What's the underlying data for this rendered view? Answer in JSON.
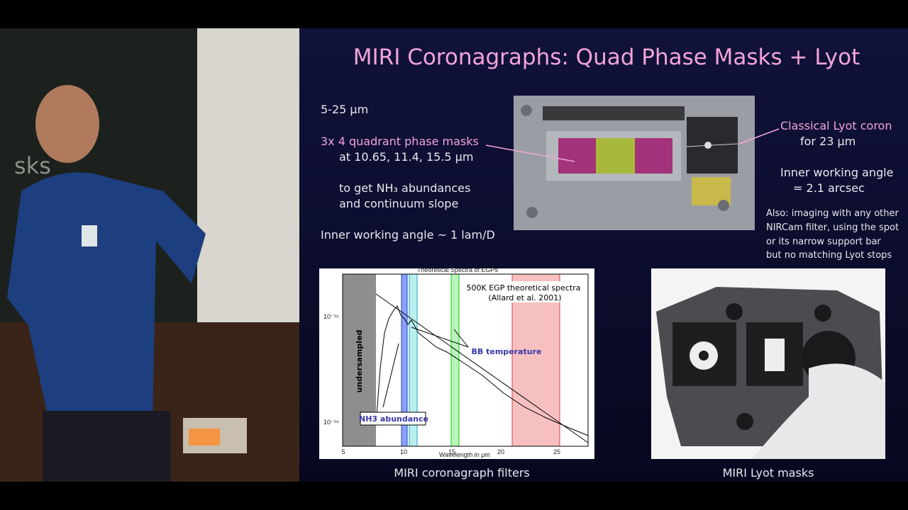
{
  "board": {
    "scribble": "sks"
  },
  "slide": {
    "title": "MIRI Coronagraphs: Quad Phase Masks + Lyot",
    "left_text": [
      "5-25 μm",
      "3x 4 quadrant phase masks",
      "at 10.65, 11.4, 15.5 μm",
      "to get NH₃ abundances",
      "and continuum slope",
      "Inner working angle ~ 1 lam/D"
    ],
    "right_text": [
      "Classical Lyot coron",
      "for 23 μm",
      "Inner working angle",
      "= 2.1 arcsec"
    ],
    "note": [
      "Also: imaging with any other",
      "NIRCam filter, using the spot",
      "or its narrow support bar",
      "but no matching Lyot stops"
    ],
    "figure": {
      "title": "Theoretical Spectra of EGPs",
      "legend": [
        "500K EGP theoretical spectra",
        "(Allard et al. 2001)"
      ],
      "band_label": "undersampled",
      "annotations": [
        "BB temperature",
        "NH3 abundance"
      ],
      "xlabel": "Wavelength in μm",
      "xticks": [
        "5",
        "10",
        "15",
        "20",
        "25"
      ],
      "yticks": [
        "10⁻¹⁸",
        "10⁻¹⁹"
      ]
    },
    "captions": [
      "MIRI coronagraph filters",
      "MIRI Lyot masks"
    ]
  }
}
